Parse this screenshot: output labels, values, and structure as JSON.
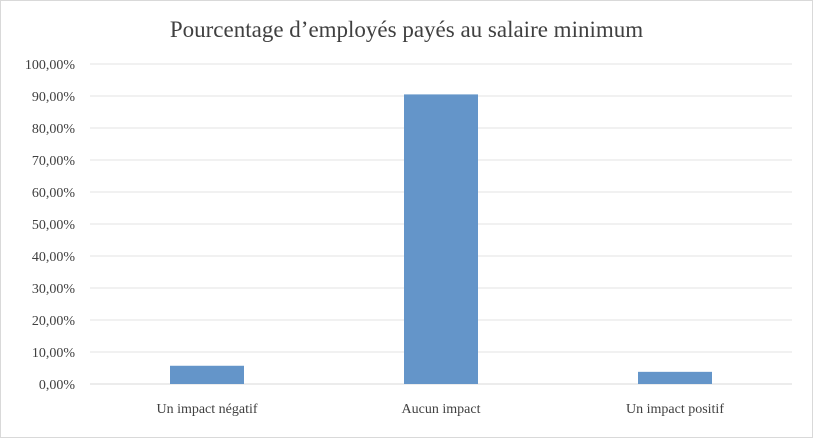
{
  "chart_data": {
    "type": "bar",
    "title": "Pourcentage d’employés payés au salaire minimum",
    "categories": [
      "Un impact négatif",
      "Aucun impact",
      "Un impact positif"
    ],
    "values": [
      5.7,
      90.5,
      3.8
    ],
    "ylim": [
      0,
      100
    ],
    "yticks": [
      "0,00%",
      "10,00%",
      "20,00%",
      "30,00%",
      "40,00%",
      "50,00%",
      "60,00%",
      "70,00%",
      "80,00%",
      "90,00%",
      "100,00%"
    ],
    "xlabel": "",
    "ylabel": "",
    "grid": true,
    "legend": "none",
    "bar_color": "#6495c9"
  }
}
